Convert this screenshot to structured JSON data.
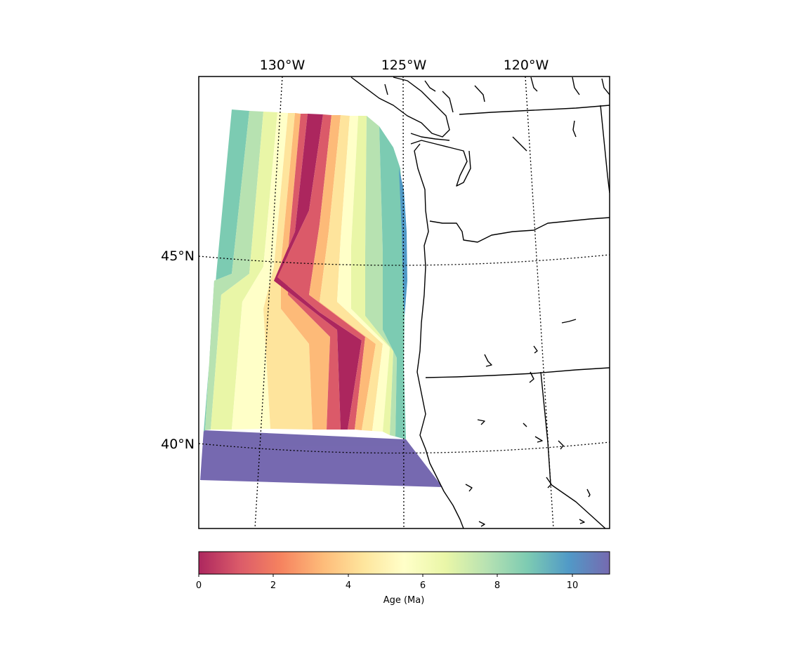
{
  "map": {
    "lon_labels": [
      "130°W",
      "125°W",
      "120°W"
    ],
    "lat_labels": [
      "45°N",
      "40°N"
    ],
    "data_layer": "oceanic crust age",
    "colormap": "Spectral",
    "land_color": "#ffffff",
    "coastline_color": "#000000",
    "gridlines": "dotted"
  },
  "colorbar": {
    "label": "Age (Ma)",
    "ticks": [
      "0",
      "2",
      "4",
      "6",
      "8",
      "10"
    ],
    "range": [
      0,
      11
    ],
    "stops": [
      "#9e0142",
      "#d53e4f",
      "#f46d43",
      "#fdae61",
      "#fee08b",
      "#ffffbf",
      "#e6f598",
      "#abdda4",
      "#66c2a5",
      "#3288bd",
      "#5e4fa2"
    ]
  }
}
